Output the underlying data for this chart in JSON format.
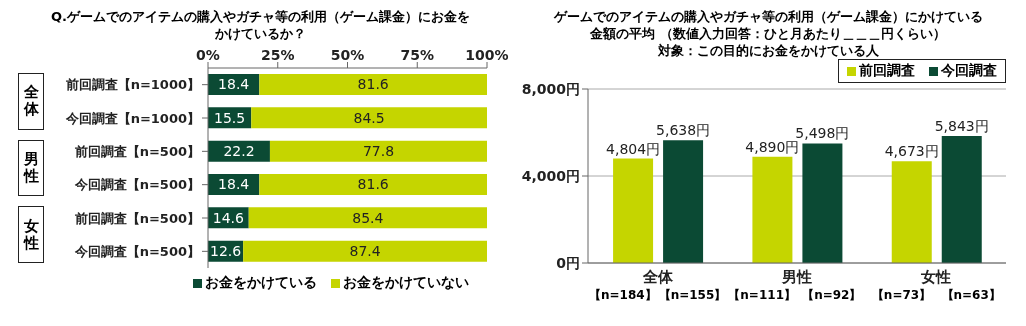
{
  "chart_data": [
    {
      "type": "bar",
      "orientation": "horizontal",
      "stacked": true,
      "title": "Q.ゲームでのアイテムの購入やガチャ等の利用（ゲーム課金）にお金をかけているか？",
      "categories": [
        "前回調査【n=1000】",
        "今回調査【n=1000】",
        "前回調査【n=500】",
        "今回調査【n=500】",
        "前回調査【n=500】",
        "今回調査【n=500】"
      ],
      "series": [
        {
          "name": "お金をかけている",
          "color": "#0b4a34",
          "values": [
            18.4,
            15.5,
            22.2,
            18.4,
            14.6,
            12.6
          ]
        },
        {
          "name": "お金をかけていない",
          "color": "#c5d500",
          "values": [
            81.6,
            84.5,
            77.8,
            81.6,
            85.4,
            87.4
          ]
        }
      ],
      "xlim": [
        0,
        100
      ],
      "xticks": [
        {
          "value": 0,
          "label": "0%"
        },
        {
          "value": 25,
          "label": "25%"
        },
        {
          "value": 50,
          "label": "50%"
        },
        {
          "value": 75,
          "label": "75%"
        },
        {
          "value": 100,
          "label": "100%"
        }
      ],
      "data_labels": true,
      "legend": "bottom",
      "annotations": [
        "全体",
        "男性",
        "女性"
      ]
    },
    {
      "type": "bar",
      "title": "ゲームでのアイテムの購入やガチャ等の利用（ゲーム課金）にかけている金額の平均 （数値入力回答：ひと月あたり＿＿＿円くらい）",
      "subtitle": "対象：この目的にお金をかけている人",
      "categories": [
        "全体",
        "男性",
        "女性"
      ],
      "series": [
        {
          "name": "前回調査",
          "color": "#c5d500",
          "values": [
            4804,
            4890,
            4673
          ],
          "value_labels": [
            "4,804円",
            "4,890円",
            "4,673円"
          ]
        },
        {
          "name": "今回調査",
          "color": "#0b4a34",
          "values": [
            5638,
            5498,
            5843
          ],
          "value_labels": [
            "5,638円",
            "5,498円",
            "5,843円"
          ]
        }
      ],
      "ylim": [
        0,
        8000
      ],
      "yticks": [
        {
          "value": 0,
          "label": "0円"
        },
        {
          "value": 4000,
          "label": "4,000円"
        },
        {
          "value": 8000,
          "label": "8,000円"
        }
      ],
      "grid": "y",
      "legend": "top right",
      "annotations": [
        "【n=184】",
        "【n=155】",
        "【n=111】",
        "【n=92】",
        "【n=73】",
        "【n=63】"
      ]
    }
  ]
}
